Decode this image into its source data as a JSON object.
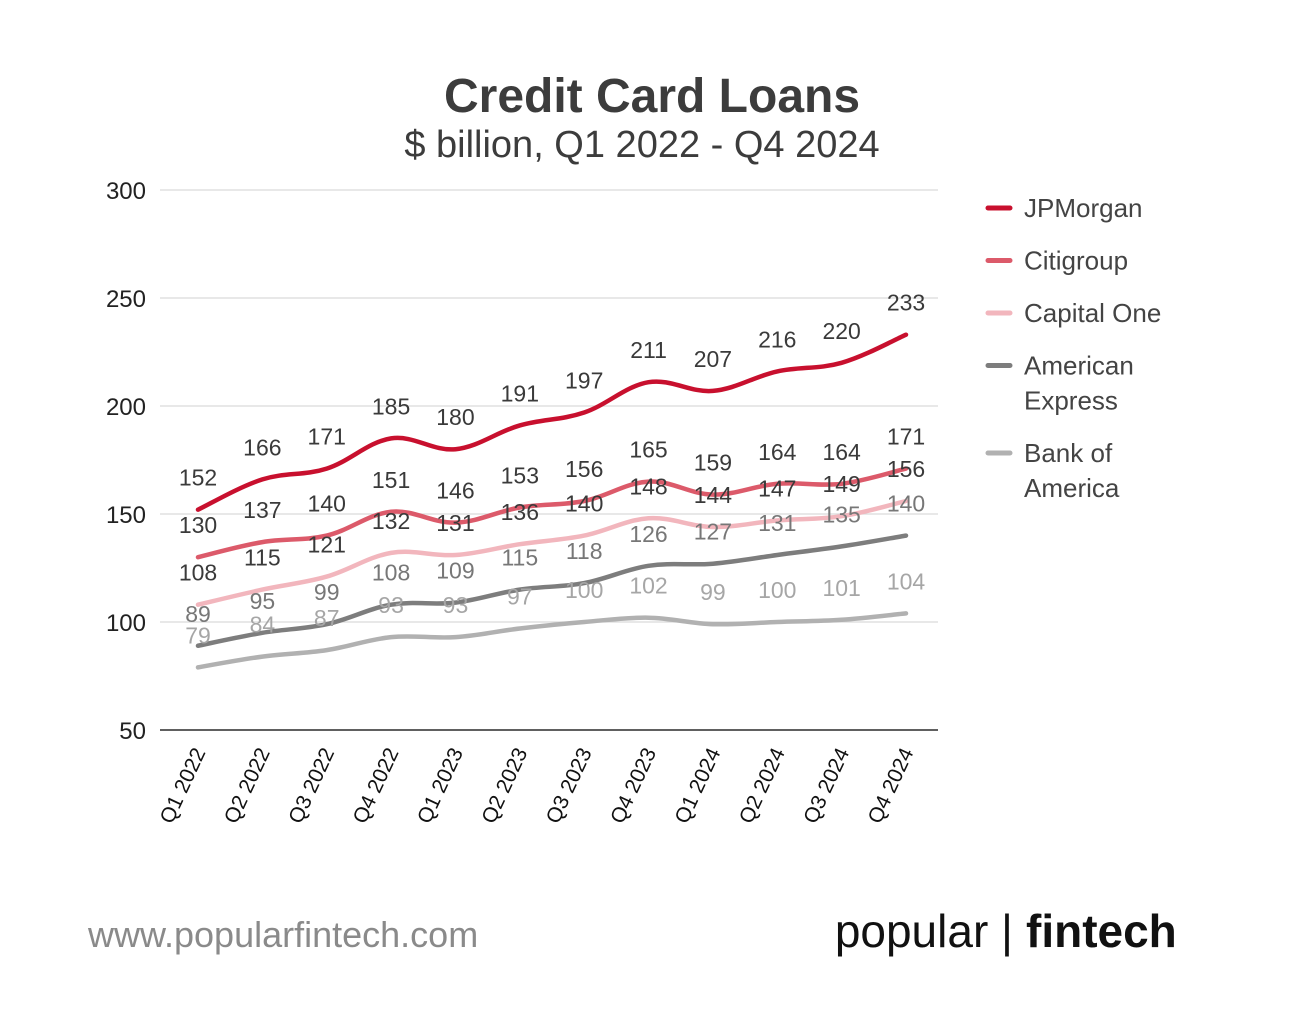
{
  "chart_data": {
    "type": "line",
    "title": "Credit Card Loans",
    "subtitle": "$ billion, Q1 2022 - Q4 2024",
    "categories": [
      "Q1 2022",
      "Q2 2022",
      "Q3 2022",
      "Q4 2022",
      "Q1 2023",
      "Q2 2023",
      "Q3 2023",
      "Q4 2023",
      "Q1 2024",
      "Q2 2024",
      "Q3 2024",
      "Q4 2024"
    ],
    "ylim": [
      50,
      300
    ],
    "yticks": [
      "50",
      "100",
      "150",
      "200",
      "250",
      "300"
    ],
    "grid": true,
    "legend_position": "right",
    "series": [
      {
        "name": "JPMorgan",
        "color": "#c8102e",
        "label_color": "#3a3a3a",
        "values": [
          152,
          166,
          171,
          185,
          180,
          191,
          197,
          211,
          207,
          216,
          220,
          233
        ]
      },
      {
        "name": "Citigroup",
        "color": "#dc5a6a",
        "label_color": "#3a3a3a",
        "values": [
          130,
          137,
          140,
          151,
          146,
          153,
          156,
          165,
          159,
          164,
          164,
          171
        ]
      },
      {
        "name": "Capital One",
        "color": "#f2b6bd",
        "label_color": "#3a3a3a",
        "values": [
          108,
          115,
          121,
          132,
          131,
          136,
          140,
          148,
          144,
          147,
          149,
          156
        ]
      },
      {
        "name": "American Express",
        "legend_lines": [
          "American",
          "Express"
        ],
        "color": "#7d7d7d",
        "label_color": "#777777",
        "values": [
          89,
          95,
          99,
          108,
          109,
          115,
          118,
          126,
          127,
          131,
          135,
          140
        ]
      },
      {
        "name": "Bank of America",
        "legend_lines": [
          "Bank of",
          "America"
        ],
        "color": "#b1b1b1",
        "label_color": "#a6a6a6",
        "values": [
          79,
          84,
          87,
          93,
          93,
          97,
          100,
          102,
          99,
          100,
          101,
          104
        ]
      }
    ]
  },
  "footer": {
    "url": "www.popularfintech.com",
    "brand_light": "popular |",
    "brand_bold": "fintech"
  }
}
